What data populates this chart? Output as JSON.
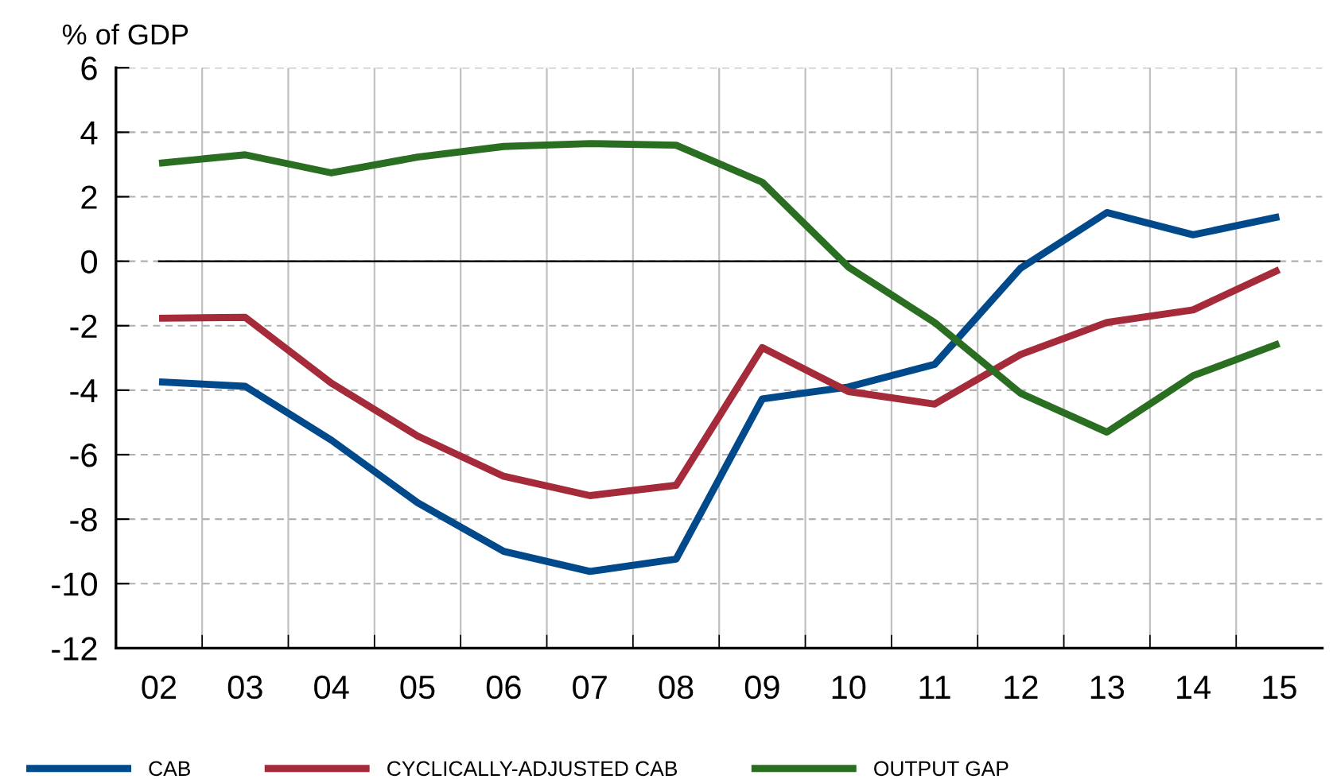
{
  "chart_data": {
    "type": "line",
    "ylabel": "% of GDP",
    "categories": [
      "02",
      "03",
      "04",
      "05",
      "06",
      "07",
      "08",
      "09",
      "10",
      "11",
      "12",
      "13",
      "14",
      "15"
    ],
    "series": [
      {
        "name": "CAB",
        "color": "#004a8c",
        "values": [
          -3.74,
          -3.88,
          -5.55,
          -7.49,
          -9.0,
          -9.62,
          -9.24,
          -4.27,
          -3.9,
          -3.2,
          -0.21,
          1.51,
          0.82,
          1.38
        ]
      },
      {
        "name": "CYCLICALLY-ADJUSTED CAB",
        "color": "#a52a3a",
        "values": [
          -1.77,
          -1.74,
          -3.78,
          -5.42,
          -6.67,
          -7.27,
          -6.95,
          -2.68,
          -4.04,
          -4.43,
          -2.89,
          -1.9,
          -1.51,
          -0.26
        ]
      },
      {
        "name": "OUTPUT GAP",
        "color": "#2a6e22",
        "values": [
          3.04,
          3.3,
          2.74,
          3.23,
          3.56,
          3.65,
          3.6,
          2.45,
          -0.18,
          -1.9,
          -4.1,
          -5.3,
          -3.55,
          -2.55
        ]
      }
    ],
    "ylim": [
      -12,
      6
    ],
    "yticks": [
      -12,
      -10,
      -8,
      -6,
      -4,
      -2,
      0,
      2,
      4,
      6
    ],
    "ref_lines": [
      {
        "axis": "y",
        "value": 0,
        "color": "#000000"
      }
    ],
    "grid": true,
    "legend": "bottom",
    "line_style": "solid",
    "marker": "none"
  }
}
